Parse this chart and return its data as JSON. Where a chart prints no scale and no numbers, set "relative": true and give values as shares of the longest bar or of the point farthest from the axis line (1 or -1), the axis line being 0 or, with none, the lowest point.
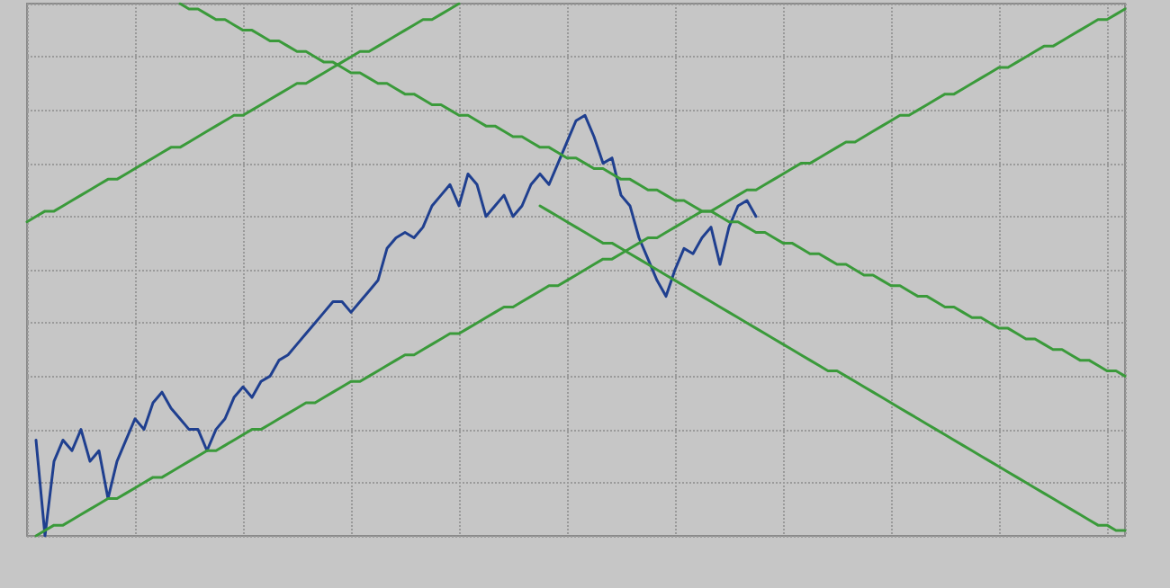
{
  "chart_data": {
    "type": "line",
    "relative": true,
    "grid": true,
    "line_style": "solid",
    "categories": [
      null,
      null,
      null,
      null,
      null,
      null,
      null,
      null,
      null,
      null,
      null,
      null,
      null,
      null,
      null,
      null,
      null,
      null,
      null,
      null,
      null,
      null,
      null,
      null,
      null,
      null,
      null,
      null,
      null,
      null,
      null,
      null,
      null,
      null,
      null,
      null,
      null,
      null,
      null,
      null,
      null,
      null,
      null,
      null,
      null,
      null,
      null,
      null,
      null,
      null,
      null,
      null,
      null,
      null,
      null,
      null,
      null,
      null,
      null,
      null,
      null,
      null,
      null,
      null,
      null,
      null,
      null,
      null,
      null,
      null,
      null,
      null,
      null,
      null,
      null,
      null,
      null,
      null,
      null,
      null,
      null,
      null,
      null,
      null,
      null,
      null,
      null,
      null,
      null,
      null,
      null,
      null,
      null,
      null,
      null,
      null,
      null,
      null,
      null,
      null,
      null,
      null,
      null,
      null,
      null,
      null,
      null,
      null,
      null,
      null,
      null,
      null,
      null,
      null,
      null,
      null,
      null,
      null,
      null,
      null,
      null,
      null,
      null
    ],
    "series": [
      {
        "color": "#1f3f8f",
        "values": [
          null,
          0.18,
          0,
          0.14,
          0.18,
          0.16,
          0.2,
          0.14,
          0.16,
          0.07,
          0.14,
          0.18,
          0.22,
          0.2,
          0.25,
          0.27,
          0.24,
          0.22,
          0.2,
          0.2,
          0.16,
          0.2,
          0.22,
          0.26,
          0.28,
          0.26,
          0.29,
          0.3,
          0.33,
          0.34,
          0.36,
          0.38,
          0.4,
          0.42,
          0.44,
          0.44,
          0.42,
          0.44,
          0.46,
          0.48,
          0.54,
          0.56,
          0.57,
          0.56,
          0.58,
          0.62,
          0.64,
          0.66,
          0.62,
          0.68,
          0.66,
          0.6,
          0.62,
          0.64,
          0.6,
          0.62,
          0.66,
          0.68,
          0.66,
          0.7,
          0.74,
          0.78,
          0.79,
          0.75,
          0.7,
          0.71,
          0.64,
          0.62,
          0.56,
          0.52,
          0.48,
          0.45,
          0.5,
          0.54,
          0.53,
          0.56,
          0.58,
          0.51,
          0.58,
          0.62,
          0.63,
          0.6,
          null,
          null,
          null,
          null,
          null,
          null,
          null,
          null,
          null,
          null,
          null,
          null,
          null,
          null,
          null,
          null,
          null,
          null,
          null,
          null,
          null,
          null,
          null,
          null,
          null,
          null,
          null,
          null,
          null,
          null,
          null,
          null,
          null,
          null,
          null,
          null,
          null,
          null,
          null,
          null,
          null
        ]
      },
      {
        "color": "#3a9a3a",
        "values": [
          0.59,
          0.6,
          0.61,
          0.61,
          0.62,
          0.63,
          0.64,
          0.65,
          0.66,
          0.67,
          0.67,
          0.68,
          0.69,
          0.7,
          0.71,
          0.72,
          0.73,
          0.73,
          0.74,
          0.75,
          0.76,
          0.77,
          0.78,
          0.79,
          0.79,
          0.8,
          0.81,
          0.82,
          0.83,
          0.84,
          0.85,
          0.85,
          0.86,
          0.87,
          0.88,
          0.89,
          0.9,
          0.91,
          0.91,
          0.92,
          0.93,
          0.94,
          0.95,
          0.96,
          0.97,
          0.97,
          0.98,
          0.99,
          1,
          null,
          null,
          null,
          null,
          null,
          null,
          null,
          null,
          null,
          null,
          null,
          null,
          null,
          null,
          null,
          null,
          null,
          null,
          null,
          null,
          null,
          null,
          null,
          null,
          null,
          null,
          null,
          null,
          null,
          null,
          null,
          null,
          null,
          null,
          null,
          null,
          null,
          null,
          null,
          null,
          null,
          null,
          null,
          null,
          null,
          null,
          null,
          null,
          null,
          null,
          null,
          null,
          null,
          null,
          null,
          null,
          null,
          null,
          null,
          null,
          null,
          null,
          null,
          null,
          null,
          null,
          null,
          null,
          null,
          null,
          null,
          null,
          null,
          null
        ]
      },
      {
        "color": "#3a9a3a",
        "values": [
          null,
          0,
          0.01,
          0.02,
          0.02,
          0.03,
          0.04,
          0.05,
          0.06,
          0.07,
          0.07,
          0.08,
          0.09,
          0.1,
          0.11,
          0.11,
          0.12,
          0.13,
          0.14,
          0.15,
          0.16,
          0.16,
          0.17,
          0.18,
          0.19,
          0.2,
          0.2,
          0.21,
          0.22,
          0.23,
          0.24,
          0.25,
          0.25,
          0.26,
          0.27,
          0.28,
          0.29,
          0.29,
          0.3,
          0.31,
          0.32,
          0.33,
          0.34,
          0.34,
          0.35,
          0.36,
          0.37,
          0.38,
          0.38,
          0.39,
          0.4,
          0.41,
          0.42,
          0.43,
          0.43,
          0.44,
          0.45,
          0.46,
          0.47,
          0.47,
          0.48,
          0.49,
          0.5,
          0.51,
          0.52,
          0.52,
          0.53,
          0.54,
          0.55,
          0.56,
          0.56,
          0.57,
          0.58,
          0.59,
          0.6,
          0.61,
          0.61,
          0.62,
          0.63,
          0.64,
          0.65,
          0.65,
          0.66,
          0.67,
          0.68,
          0.69,
          0.7,
          0.7,
          0.71,
          0.72,
          0.73,
          0.74,
          0.74,
          0.75,
          0.76,
          0.77,
          0.78,
          0.79,
          0.79,
          0.8,
          0.81,
          0.82,
          0.83,
          0.83,
          0.84,
          0.85,
          0.86,
          0.87,
          0.88,
          0.88,
          0.89,
          0.9,
          0.91,
          0.92,
          0.92,
          0.93,
          0.94,
          0.95,
          0.96,
          0.97,
          0.97,
          0.98,
          0.99
        ]
      },
      {
        "color": "#3a9a3a",
        "values": [
          null,
          null,
          null,
          null,
          null,
          null,
          null,
          null,
          null,
          null,
          null,
          null,
          null,
          null,
          null,
          null,
          null,
          1,
          0.99,
          0.99,
          0.98,
          0.97,
          0.97,
          0.96,
          0.95,
          0.95,
          0.94,
          0.93,
          0.93,
          0.92,
          0.91,
          0.91,
          0.9,
          0.89,
          0.89,
          0.88,
          0.87,
          0.87,
          0.86,
          0.85,
          0.85,
          0.84,
          0.83,
          0.83,
          0.82,
          0.81,
          0.81,
          0.8,
          0.79,
          0.79,
          0.78,
          0.77,
          0.77,
          0.76,
          0.75,
          0.75,
          0.74,
          0.73,
          0.73,
          0.72,
          0.71,
          0.71,
          0.7,
          0.69,
          0.69,
          0.68,
          0.67,
          0.67,
          0.66,
          0.65,
          0.65,
          0.64,
          0.63,
          0.63,
          0.62,
          0.61,
          0.61,
          0.6,
          0.59,
          0.59,
          0.58,
          0.57,
          0.57,
          0.56,
          0.55,
          0.55,
          0.54,
          0.53,
          0.53,
          0.52,
          0.51,
          0.51,
          0.5,
          0.49,
          0.49,
          0.48,
          0.47,
          0.47,
          0.46,
          0.45,
          0.45,
          0.44,
          0.43,
          0.43,
          0.42,
          0.41,
          0.41,
          0.4,
          0.39,
          0.39,
          0.38,
          0.37,
          0.37,
          0.36,
          0.35,
          0.35,
          0.34,
          0.33,
          0.33,
          0.32,
          0.31,
          0.31,
          0.3
        ]
      },
      {
        "color": "#3a9a3a",
        "values": [
          null,
          null,
          null,
          null,
          null,
          null,
          null,
          null,
          null,
          null,
          null,
          null,
          null,
          null,
          null,
          null,
          null,
          null,
          null,
          null,
          null,
          null,
          null,
          null,
          null,
          null,
          null,
          null,
          null,
          null,
          null,
          null,
          null,
          null,
          null,
          null,
          null,
          null,
          null,
          null,
          null,
          null,
          null,
          null,
          null,
          null,
          null,
          null,
          null,
          null,
          null,
          null,
          null,
          null,
          null,
          null,
          null,
          0.62,
          0.61,
          0.6,
          0.59,
          0.58,
          0.57,
          0.56,
          0.55,
          0.55,
          0.54,
          0.53,
          0.52,
          0.51,
          0.5,
          0.49,
          0.48,
          0.47,
          0.46,
          0.45,
          0.44,
          0.43,
          0.42,
          0.41,
          0.4,
          0.39,
          0.38,
          0.37,
          0.36,
          0.35,
          0.34,
          0.33,
          0.32,
          0.31,
          0.31,
          0.3,
          0.29,
          0.28,
          0.27,
          0.26,
          0.25,
          0.24,
          0.23,
          0.22,
          0.21,
          0.2,
          0.19,
          0.18,
          0.17,
          0.16,
          0.15,
          0.14,
          0.13,
          0.12,
          0.11,
          0.1,
          0.09,
          0.08,
          0.07,
          0.06,
          0.05,
          0.04,
          0.03,
          0.02,
          0.02,
          0.01,
          0.01
        ]
      }
    ]
  }
}
